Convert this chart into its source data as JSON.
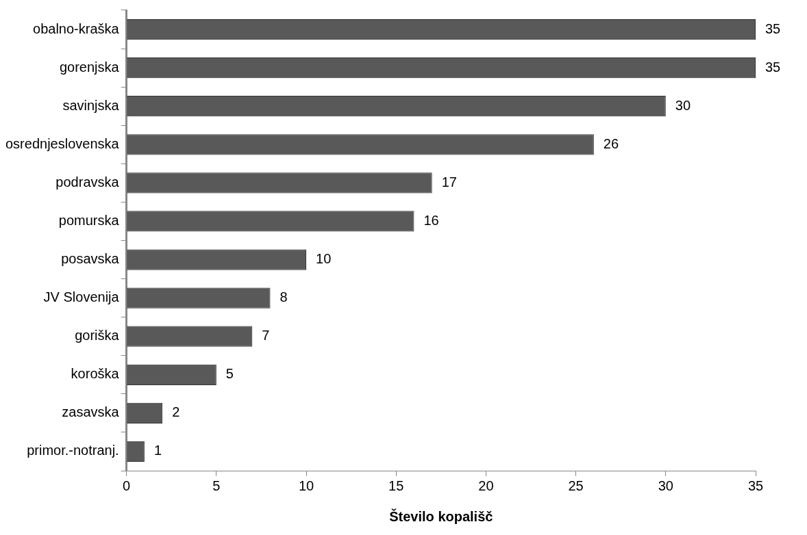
{
  "chart_data": {
    "type": "bar",
    "orientation": "horizontal",
    "xlabel": "Število kopališč",
    "categories": [
      "obalno-kraška",
      "gorenjska",
      "savinjska",
      "osrednjeslovenska",
      "podravska",
      "pomurska",
      "posavska",
      "JV Slovenija",
      "goriška",
      "koroška",
      "zasavska",
      "primor.-notranj."
    ],
    "values": [
      35,
      35,
      30,
      26,
      17,
      16,
      10,
      8,
      7,
      5,
      2,
      1
    ],
    "color": "#595959",
    "xlim": [
      0,
      35
    ],
    "xticks": [
      0,
      5,
      10,
      15,
      20,
      25,
      30,
      35
    ],
    "data_labels": true
  }
}
